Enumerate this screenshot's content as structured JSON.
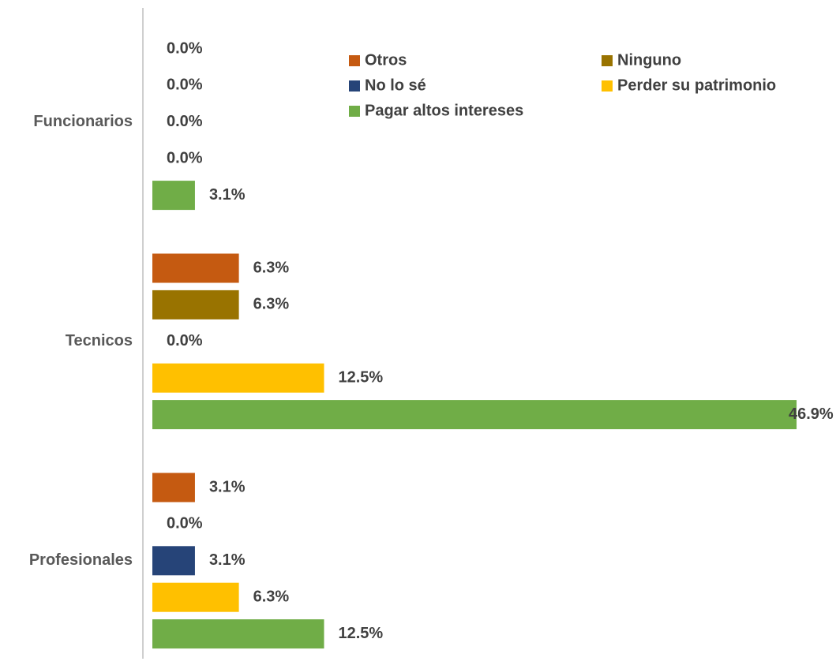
{
  "chart_data": {
    "type": "bar",
    "orientation": "horizontal",
    "categories": [
      "Funcionarios",
      "Tecnicos",
      "Profesionales"
    ],
    "series": [
      {
        "name": "Otros",
        "color": "#c55a11",
        "values": [
          0.0,
          6.3,
          3.1
        ],
        "value_labels": [
          "0.0%",
          "6.3%",
          "3.1%"
        ]
      },
      {
        "name": "Ninguno",
        "color": "#997300",
        "values": [
          0.0,
          6.3,
          0.0
        ],
        "value_labels": [
          "0.0%",
          "6.3%",
          "0.0%"
        ]
      },
      {
        "name": "No lo sé",
        "color": "#264478",
        "values": [
          0.0,
          0.0,
          3.1
        ],
        "value_labels": [
          "0.0%",
          "0.0%",
          "3.1%"
        ]
      },
      {
        "name": "Perder su patrimonio",
        "color": "#ffc000",
        "values": [
          0.0,
          12.5,
          6.3
        ],
        "value_labels": [
          "0.0%",
          "12.5%",
          "6.3%"
        ]
      },
      {
        "name": "Pagar altos intereses",
        "color": "#70ad47",
        "values": [
          3.1,
          46.9,
          12.5
        ],
        "value_labels": [
          "3.1%",
          "46.9%",
          "12.5%"
        ]
      }
    ],
    "legend": "top-right"
  }
}
